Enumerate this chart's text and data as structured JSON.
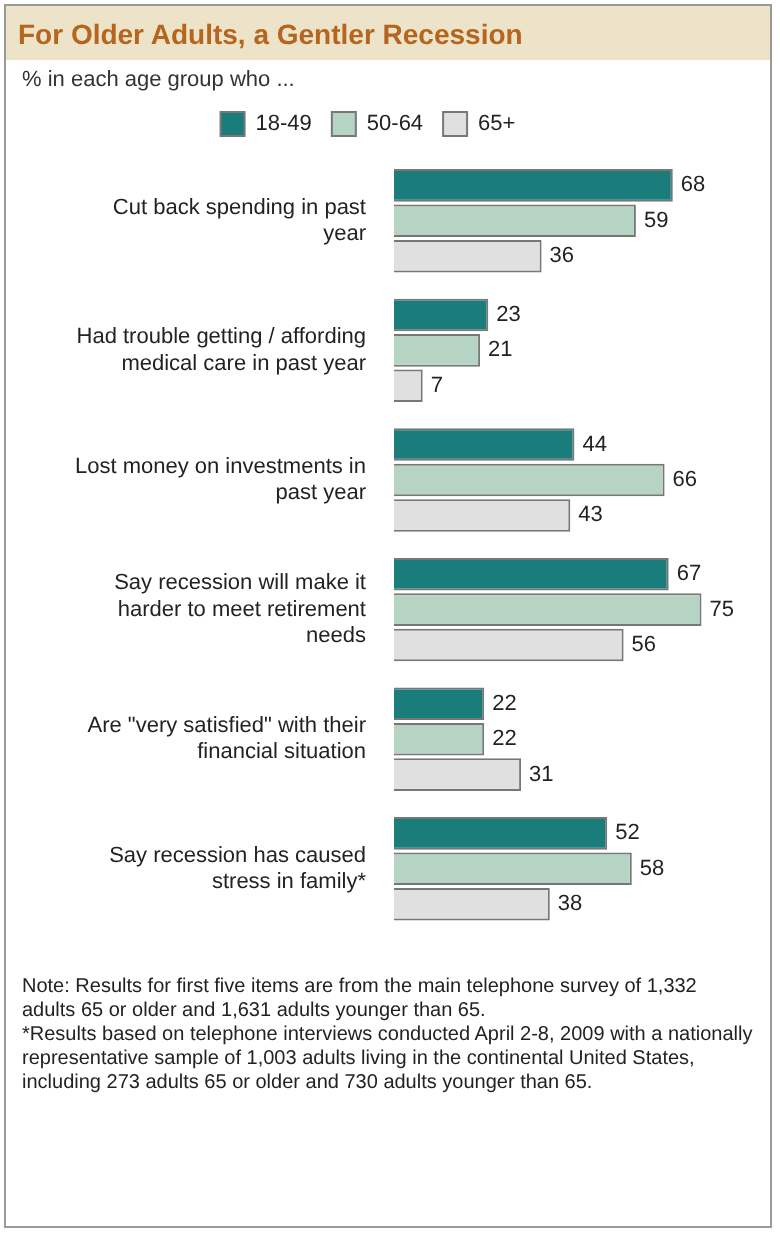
{
  "chart_data": {
    "type": "bar",
    "orientation": "horizontal",
    "title": "For Older Adults, a Gentler Recession",
    "subtitle": "% in each age group who ...",
    "categories": [
      "Cut back spending in past year",
      "Had trouble getting / affording medical care in past year",
      "Lost money on investments in past year",
      "Say recession will make it harder to meet retirement needs",
      "Are \"very satisfied\" with their financial situation",
      "Say recession has caused stress in family*"
    ],
    "series": [
      {
        "name": "18-49",
        "color": "#1b7c7c",
        "values": [
          68,
          23,
          44,
          67,
          22,
          52
        ]
      },
      {
        "name": "50-64",
        "color": "#b6d4c4",
        "values": [
          59,
          21,
          66,
          75,
          22,
          58
        ]
      },
      {
        "name": "65+",
        "color": "#e0e0e0",
        "values": [
          36,
          7,
          43,
          56,
          31,
          38
        ]
      }
    ],
    "data_labels": true,
    "legend": "top",
    "grid": false,
    "tick_labels": "y",
    "annotations": [
      "Note: Results for first five items are from the main telephone survey of 1,332 adults 65 or older and 1,631 adults younger than 65.",
      "*Results based on telephone interviews conducted April 2-8, 2009 with a nationally representative sample of 1,003 adults living in the continental United States, including 273 adults 65 or older and 730 adults younger than 65."
    ]
  }
}
